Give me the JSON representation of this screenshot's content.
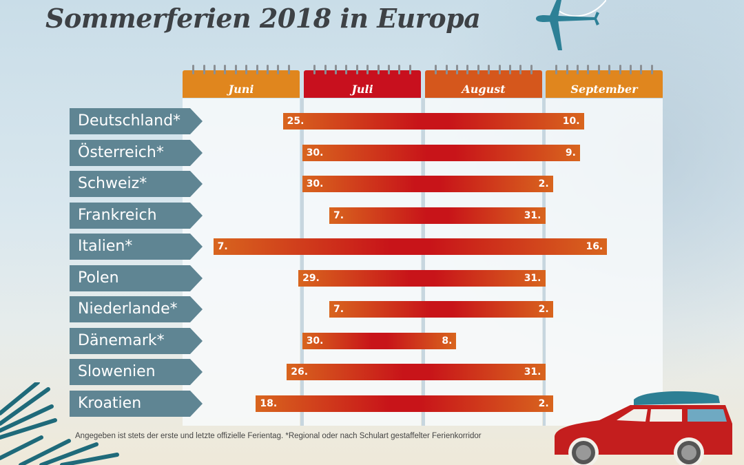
{
  "title": "Sommerferien 2018 in Europa",
  "footnote": "Angegeben ist stets der erste und letzte offizielle Ferientag. *Regional oder nach Schulart gestaffelter Ferienkorridor",
  "icons": [
    "airplane-icon",
    "car-icon",
    "palm-leaf-icon"
  ],
  "colors": {
    "juni": "#e0861e",
    "juli": "#c8101e",
    "august": "#d5571c",
    "september": "#e0861e",
    "label_bg": "#5f8593",
    "bar_start": "#d8651e",
    "bar_mid": "#c81419"
  },
  "chart_data": {
    "type": "bar",
    "subtype": "gantt",
    "title": "Sommerferien 2018 in Europa",
    "year": 2018,
    "months": [
      "Juni",
      "Juli",
      "August",
      "September"
    ],
    "categories": [
      "Deutschland*",
      "Österreich*",
      "Schweiz*",
      "Frankreich",
      "Italien*",
      "Polen",
      "Niederlande*",
      "Dänemark*",
      "Slowenien",
      "Kroatien"
    ],
    "series": [
      {
        "name": "Deutschland*",
        "start": "2018-06-25",
        "end": "2018-09-10",
        "start_label": "25.",
        "end_label": "10."
      },
      {
        "name": "Österreich*",
        "start": "2018-06-30",
        "end": "2018-09-09",
        "start_label": "30.",
        "end_label": "9."
      },
      {
        "name": "Schweiz*",
        "start": "2018-06-30",
        "end": "2018-09-02",
        "start_label": "30.",
        "end_label": "2."
      },
      {
        "name": "Frankreich",
        "start": "2018-07-07",
        "end": "2018-08-31",
        "start_label": "7.",
        "end_label": "31."
      },
      {
        "name": "Italien*",
        "start": "2018-06-07",
        "end": "2018-09-16",
        "start_label": "7.",
        "end_label": "16."
      },
      {
        "name": "Polen",
        "start": "2018-06-29",
        "end": "2018-08-31",
        "start_label": "29.",
        "end_label": "31."
      },
      {
        "name": "Niederlande*",
        "start": "2018-07-07",
        "end": "2018-09-02",
        "start_label": "7.",
        "end_label": "2."
      },
      {
        "name": "Dänemark*",
        "start": "2018-06-30",
        "end": "2018-08-08",
        "start_label": "30.",
        "end_label": "8."
      },
      {
        "name": "Slowenien",
        "start": "2018-06-26",
        "end": "2018-08-31",
        "start_label": "26.",
        "end_label": "31."
      },
      {
        "name": "Kroatien",
        "start": "2018-06-18",
        "end": "2018-09-02",
        "start_label": "18.",
        "end_label": "2."
      }
    ],
    "xrange": [
      "2018-06-01",
      "2018-09-30"
    ],
    "grid": true,
    "legend": "none"
  }
}
